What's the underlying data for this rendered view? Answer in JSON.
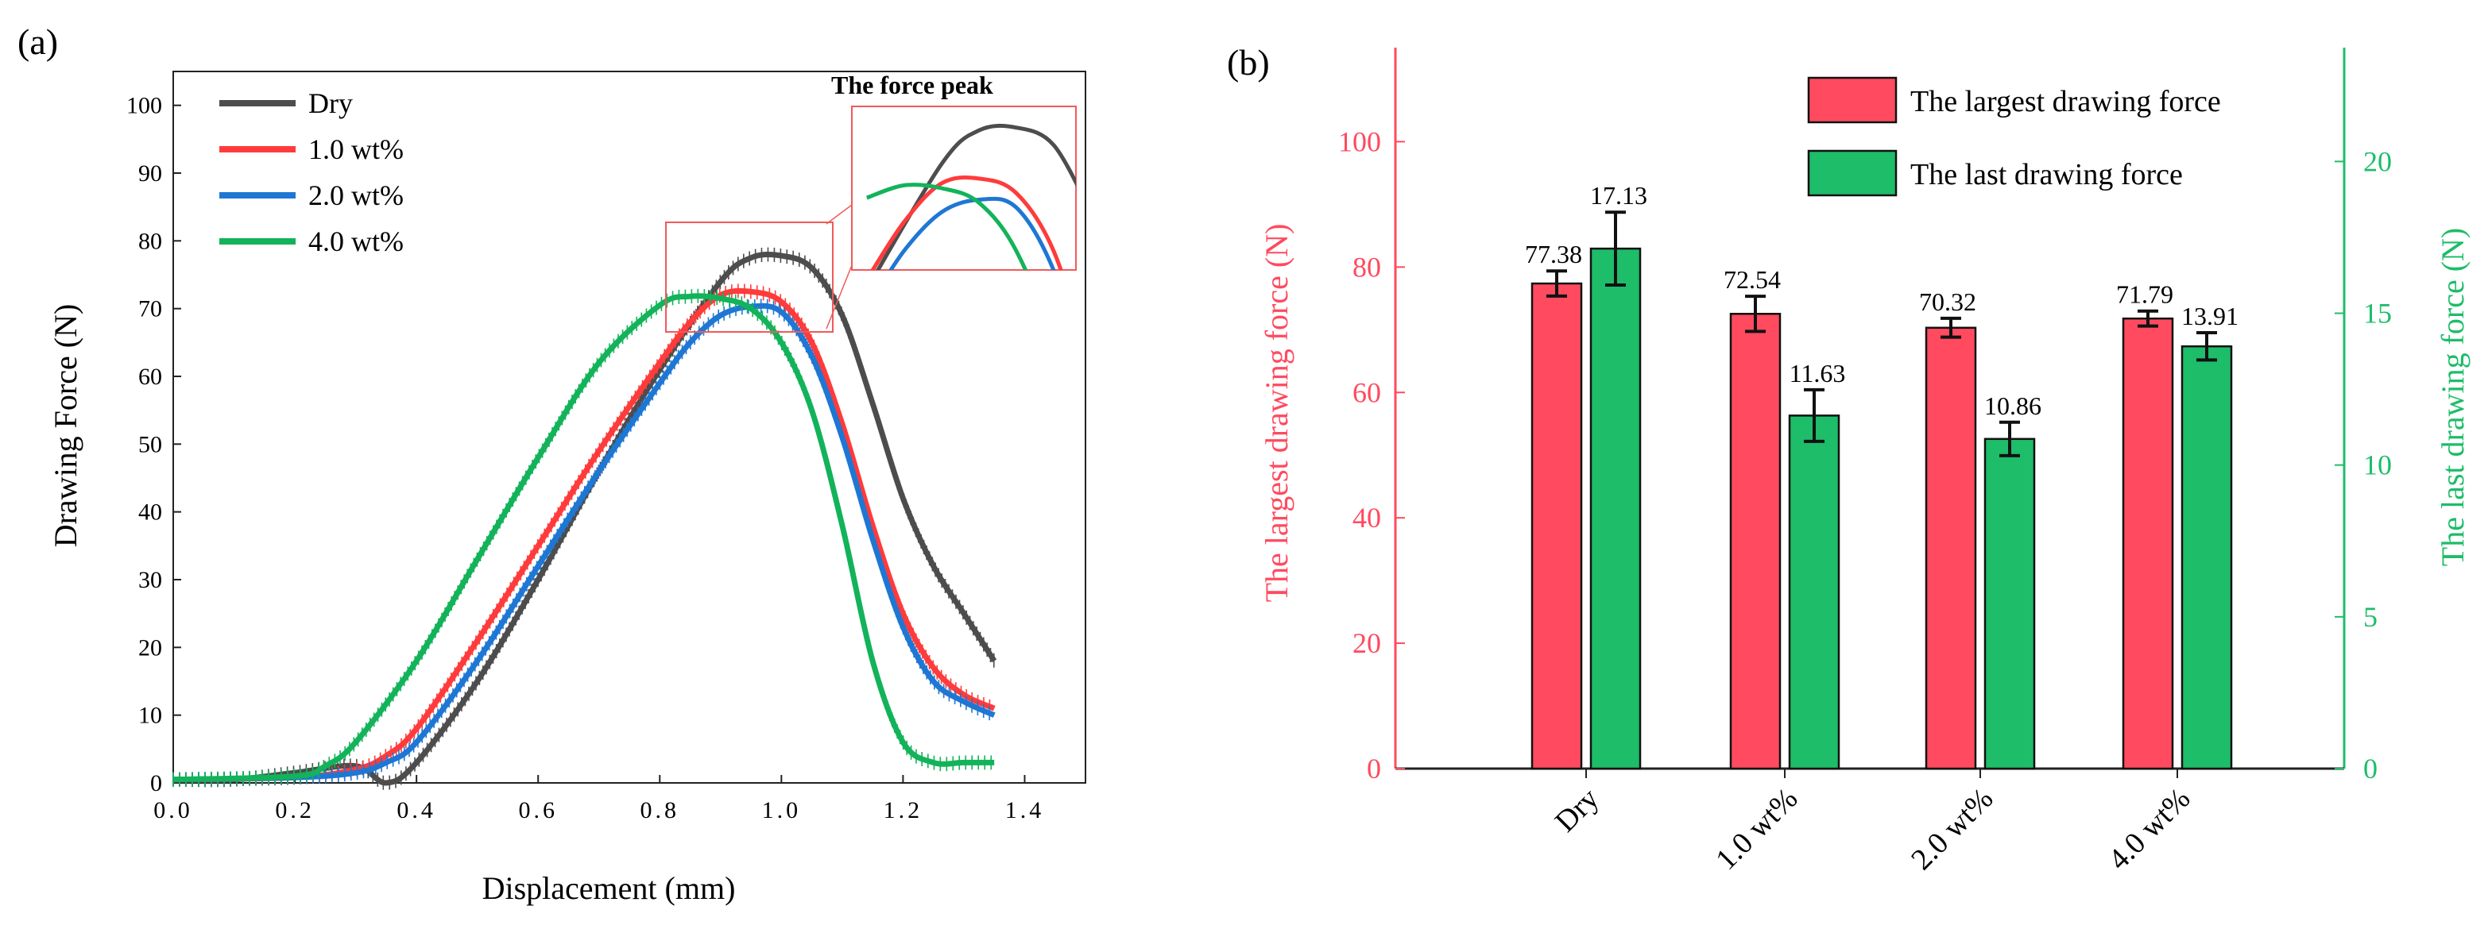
{
  "chart_data": [
    {
      "panel": "(a)",
      "type": "line",
      "xlabel": "Displacement (mm)",
      "ylabel": "Drawing Force (N)",
      "xlim": [
        0,
        1.5
      ],
      "ylim": [
        0,
        105
      ],
      "x_ticks": [
        "0.0",
        "0.2",
        "0.4",
        "0.6",
        "0.8",
        "1.0",
        "1.2",
        "1.4"
      ],
      "y_ticks": [
        "0",
        "10",
        "20",
        "30",
        "40",
        "50",
        "60",
        "70",
        "80",
        "90",
        "100"
      ],
      "inset_title": "The force peak",
      "legend": [
        "Dry",
        "1.0 wt%",
        "2.0 wt%",
        "4.0 wt%"
      ],
      "series": [
        {
          "name": "Dry",
          "color": "#4d4d4d",
          "x": [
            0,
            0.1,
            0.2,
            0.3,
            0.35,
            0.4,
            0.5,
            0.6,
            0.7,
            0.8,
            0.9,
            0.95,
            1.0,
            1.05,
            1.1,
            1.15,
            1.2,
            1.25,
            1.3,
            1.35
          ],
          "y": [
            0.5,
            0.5,
            1.5,
            2.5,
            0,
            3,
            15,
            30,
            46,
            61,
            74,
            77.5,
            77.8,
            76,
            69,
            56,
            42,
            32,
            25,
            18
          ]
        },
        {
          "name": "1.0 wt%",
          "color": "#ff3b3b",
          "x": [
            0,
            0.2,
            0.3,
            0.35,
            0.4,
            0.5,
            0.6,
            0.7,
            0.8,
            0.85,
            0.9,
            0.95,
            1.0,
            1.05,
            1.1,
            1.15,
            1.2,
            1.25,
            1.3,
            1.35
          ],
          "y": [
            0.5,
            0.8,
            2,
            4,
            8,
            21,
            35,
            49,
            62,
            68,
            72,
            72.5,
            71,
            65,
            53,
            38,
            25,
            17,
            13,
            11
          ]
        },
        {
          "name": "2.0 wt%",
          "color": "#1f77d4",
          "x": [
            0,
            0.2,
            0.3,
            0.35,
            0.4,
            0.5,
            0.6,
            0.7,
            0.8,
            0.85,
            0.9,
            0.95,
            1.0,
            1.05,
            1.1,
            1.15,
            1.2,
            1.25,
            1.3,
            1.35
          ],
          "y": [
            0.5,
            0.8,
            1.5,
            3,
            6,
            18,
            32,
            46,
            59,
            65,
            69,
            70.3,
            69.5,
            63,
            51,
            36,
            23,
            15,
            12,
            10
          ]
        },
        {
          "name": "4.0 wt%",
          "color": "#13b35a",
          "x": [
            0,
            0.2,
            0.25,
            0.3,
            0.4,
            0.5,
            0.6,
            0.7,
            0.8,
            0.85,
            0.9,
            0.95,
            1.0,
            1.05,
            1.1,
            1.15,
            1.2,
            1.25,
            1.3,
            1.35
          ],
          "y": [
            0.5,
            1,
            2.5,
            6,
            18,
            33,
            48,
            62,
            70.5,
            71.8,
            71.5,
            70,
            65,
            55,
            38,
            18,
            6,
            3,
            3,
            3
          ]
        }
      ]
    },
    {
      "panel": "(b)",
      "type": "bar",
      "categories": [
        "Dry",
        "1.0 wt%",
        "2.0 wt%",
        "4.0 wt%"
      ],
      "ylabel": "The largest drawing force (N)",
      "ylabel_right": "The last drawing force (N)",
      "ylim": [
        0,
        115
      ],
      "ylim_right": [
        0,
        23.75
      ],
      "y_ticks": [
        "0",
        "20",
        "40",
        "60",
        "80",
        "100"
      ],
      "y_ticks_right": [
        "0",
        "5",
        "10",
        "15",
        "20"
      ],
      "left_color": "#ff4a5f",
      "right_color": "#1dbd69",
      "series": [
        {
          "name": "The largest drawing force",
          "axis": "left",
          "color": "#ff4a5f",
          "values": [
            77.38,
            72.54,
            70.32,
            71.79
          ],
          "labels": [
            "77.38",
            "72.54",
            "70.32",
            "71.79"
          ],
          "errors": [
            2.0,
            2.8,
            1.5,
            1.2
          ]
        },
        {
          "name": "The last drawing force",
          "axis": "right",
          "color": "#1dbd69",
          "values": [
            17.13,
            11.63,
            10.86,
            13.91
          ],
          "labels": [
            "17.13",
            "11.63",
            "10.86",
            "13.91"
          ],
          "errors": [
            1.2,
            0.85,
            0.55,
            0.45
          ]
        }
      ]
    }
  ]
}
